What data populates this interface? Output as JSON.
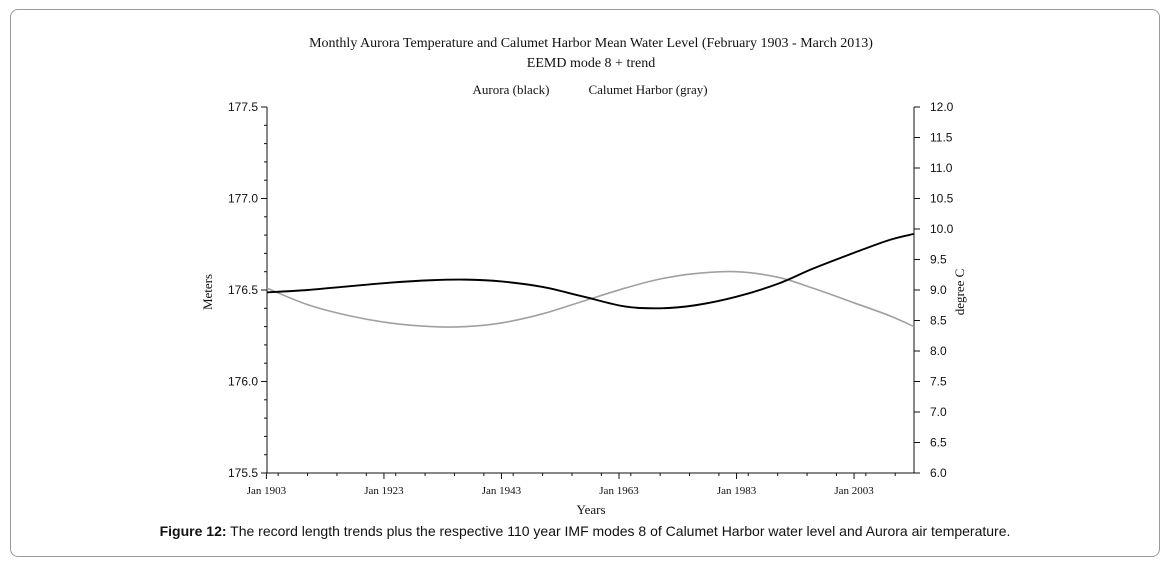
{
  "chart_data": {
    "type": "line",
    "title": "Monthly Aurora Temperature and Calumet Harbor Mean Water Level (February 1903 - March 2013)",
    "subtitle": "EEMD mode 8 + trend",
    "legend": [
      "Aurora (black)",
      "Calumet Harbor (gray)"
    ],
    "legend_position": "top-center",
    "xlabel": "Years",
    "ylabel_left": "Meters",
    "ylabel_right": "degree C",
    "xlim": [
      1903.1,
      2013.2
    ],
    "x_ticks": [
      1903,
      1923,
      1943,
      1963,
      1983,
      2003
    ],
    "x_tick_labels": [
      "Jan 1903",
      "Jan 1923",
      "Jan 1943",
      "Jan 1963",
      "Jan 1983",
      "Jan 2003"
    ],
    "ylim_left": [
      175.5,
      177.5
    ],
    "y_left_ticks": [
      "175.5",
      "176.0",
      "176.5",
      "177.0",
      "177.5"
    ],
    "ylim_right": [
      6.0,
      12.0
    ],
    "y_right_ticks": [
      "6.0",
      "6.5",
      "7.0",
      "7.5",
      "8.0",
      "8.5",
      "9.0",
      "9.5",
      "10.0",
      "10.5",
      "11.0",
      "11.5",
      "12.0"
    ],
    "grid": false,
    "series": [
      {
        "name": "Aurora (black)",
        "axis": "right",
        "color": "#000000",
        "x": [
          1903.1,
          1910,
          1917,
          1924,
          1931,
          1937,
          1943,
          1950,
          1957,
          1964,
          1970,
          1976,
          1983,
          1990,
          1996,
          2003,
          2009,
          2013.2
        ],
        "y": [
          8.96,
          9.0,
          9.06,
          9.12,
          9.16,
          9.17,
          9.14,
          9.05,
          8.89,
          8.73,
          8.7,
          8.75,
          8.89,
          9.1,
          9.35,
          9.61,
          9.82,
          9.92
        ]
      },
      {
        "name": "Calumet Harbor (gray)",
        "axis": "left",
        "color": "#a0a0a0",
        "x": [
          1903.1,
          1910,
          1917,
          1924,
          1931,
          1937,
          1943,
          1950,
          1957,
          1964,
          1970,
          1976,
          1983,
          1990,
          1996,
          2003,
          2009,
          2013.2
        ],
        "y": [
          176.51,
          176.42,
          176.36,
          176.32,
          176.3,
          176.3,
          176.32,
          176.37,
          176.44,
          176.51,
          176.56,
          176.59,
          176.6,
          176.57,
          176.51,
          176.43,
          176.36,
          176.3
        ]
      }
    ]
  },
  "caption": {
    "label": "Figure 12:",
    "text": " The record length trends plus the respective 110 year IMF modes 8 of Calumet Harbor water level and Aurora air temperature."
  }
}
